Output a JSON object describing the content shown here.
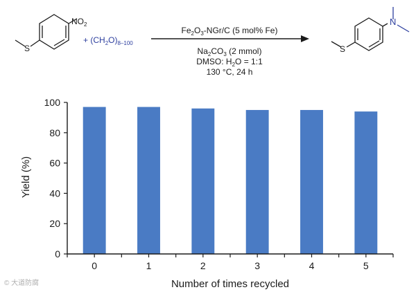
{
  "scheme": {
    "reagent_plus": "+",
    "reagent_main": "(CH",
    "reagent_sub": "2",
    "reagent_close": "O)",
    "reagent_range": "8–100",
    "catalyst_main": "Fe",
    "catalyst_sub1": "2",
    "catalyst_mid": "O",
    "catalyst_sub2": "3",
    "catalyst_rest": "-NGr/C (5 mol% Fe)",
    "base_main": "Na",
    "base_sub1": "2",
    "base_mid": "CO",
    "base_sub2": "3",
    "base_rest": " (2 mmol)",
    "solvent_main": "DMSO: H",
    "solvent_sub": "2",
    "solvent_rest": "O = 1:1",
    "conditions": "130 °C, 24 h",
    "sm_nitro_label": "NO",
    "sm_nitro_sub": "2",
    "sulfur_label": "S",
    "product_n_label": "N",
    "product_s_label": "S"
  },
  "chart_data": {
    "type": "bar",
    "categories": [
      "0",
      "1",
      "2",
      "3",
      "4",
      "5"
    ],
    "values": [
      97,
      97,
      96,
      95,
      95,
      94
    ],
    "xlabel": "Number of times recycled",
    "ylabel": "Yield (%)",
    "ylim": [
      0,
      100
    ],
    "yticks": [
      0,
      20,
      40,
      60,
      80,
      100
    ],
    "bar_color": "#4a7bc4"
  },
  "watermark": "© 大道防腐"
}
